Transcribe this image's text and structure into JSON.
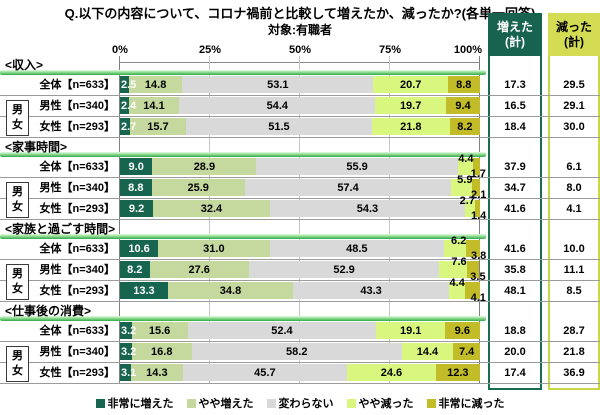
{
  "title": "Q.以下の内容について、コロナ禍前と比較して増えたか、減ったか?(各単一回答)",
  "subtitle": "対象:有職者",
  "gender_box": {
    "top": "男",
    "bottom": "女"
  },
  "chart_data": {
    "type": "bar",
    "orientation": "horizontal",
    "stacked": true,
    "unit": "%",
    "xlim": [
      0,
      100
    ],
    "axis_ticks": [
      "0%",
      "25%",
      "50%",
      "75%",
      "100%"
    ],
    "grid": true,
    "legend_position": "bottom",
    "legend": [
      "非常に増えた",
      "やや増えた",
      "変わらない",
      "やや減った",
      "非常に減った"
    ],
    "series_colors": [
      "#17654e",
      "#c5d89e",
      "#d9d9d9",
      "#d9f77e",
      "#c2bc28"
    ],
    "summary_increased": {
      "line1": "増えた",
      "line2": "(計)",
      "bg": "#176350",
      "border": "#1a6b52"
    },
    "summary_decreased": {
      "line1": "減った",
      "line2": "(計)",
      "bg": "#d3dc52",
      "border": "#c9d64a"
    },
    "groups": [
      {
        "name": "<収入>",
        "rows": [
          {
            "label": "全体【n=633】",
            "values": [
              2.5,
              14.8,
              53.1,
              20.7,
              8.8
            ],
            "increased": 17.3,
            "decreased": 29.5
          },
          {
            "label": "男性【n=340】",
            "values": [
              2.4,
              14.1,
              54.4,
              19.7,
              9.4
            ],
            "increased": 16.5,
            "decreased": 29.1
          },
          {
            "label": "女性【n=293】",
            "values": [
              2.7,
              15.7,
              51.5,
              21.8,
              8.2
            ],
            "increased": 18.4,
            "decreased": 30.0
          }
        ]
      },
      {
        "name": "<家事時間>",
        "rows": [
          {
            "label": "全体【n=633】",
            "values": [
              9.0,
              28.9,
              55.9,
              4.4,
              1.7
            ],
            "increased": 37.9,
            "decreased": 6.1
          },
          {
            "label": "男性【n=340】",
            "values": [
              8.8,
              25.9,
              57.4,
              5.9,
              2.1
            ],
            "increased": 34.7,
            "decreased": 8.0
          },
          {
            "label": "女性【n=293】",
            "values": [
              9.2,
              32.4,
              54.3,
              2.7,
              1.4
            ],
            "increased": 41.6,
            "decreased": 4.1
          }
        ]
      },
      {
        "name": "<家族と過ごす時間>",
        "rows": [
          {
            "label": "全体【n=633】",
            "values": [
              10.6,
              31.0,
              48.5,
              6.2,
              3.8
            ],
            "increased": 41.6,
            "decreased": 10.0
          },
          {
            "label": "男性【n=340】",
            "values": [
              8.2,
              27.6,
              52.9,
              7.6,
              3.5
            ],
            "increased": 35.8,
            "decreased": 11.1
          },
          {
            "label": "女性【n=293】",
            "values": [
              13.3,
              34.8,
              43.3,
              4.4,
              4.1
            ],
            "increased": 48.1,
            "decreased": 8.5
          }
        ]
      },
      {
        "name": "<仕事後の消費>",
        "rows": [
          {
            "label": "全体【n=633】",
            "values": [
              3.2,
              15.6,
              52.4,
              19.1,
              9.6
            ],
            "increased": 18.8,
            "decreased": 28.7
          },
          {
            "label": "男性【n=340】",
            "values": [
              3.2,
              16.8,
              58.2,
              14.4,
              7.4
            ],
            "increased": 20.0,
            "decreased": 21.8
          },
          {
            "label": "女性【n=293】",
            "values": [
              3.1,
              14.3,
              45.7,
              24.6,
              12.3
            ],
            "increased": 17.4,
            "decreased": 36.9
          }
        ]
      }
    ]
  }
}
